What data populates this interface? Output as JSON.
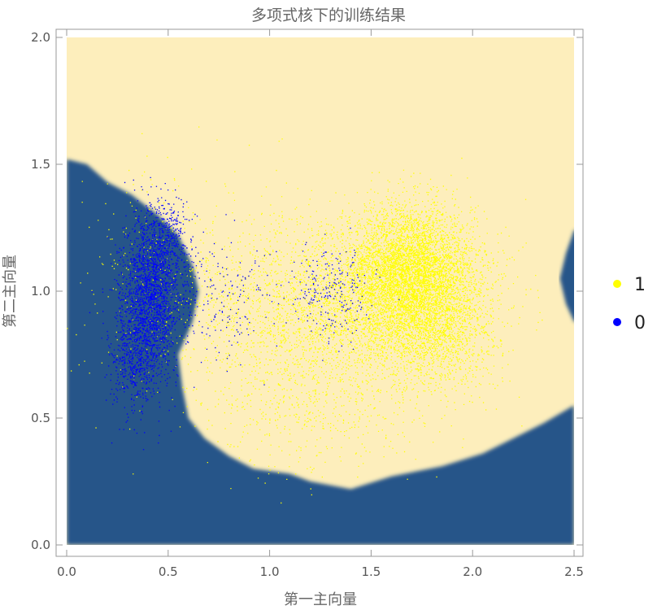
{
  "chart_data": {
    "type": "scatter",
    "title": "多项式核下的训练结果",
    "xlabel": "第一主向量",
    "ylabel": "第二主向量",
    "xlim": [
      0,
      2.5
    ],
    "ylim": [
      0,
      2.0
    ],
    "xticks": [
      "0.0",
      "0.5",
      "1.0",
      "1.5",
      "2.0",
      "2.5"
    ],
    "yticks": [
      "0.0",
      "0.5",
      "1.0",
      "1.5",
      "2.0"
    ],
    "xtick_values": [
      0,
      0.5,
      1.0,
      1.5,
      2.0,
      2.5
    ],
    "ytick_values": [
      0,
      0.5,
      1.0,
      1.5,
      2.0
    ],
    "legend_position": "right",
    "background_regions": {
      "class_1_color": "#fdeebc",
      "class_0_color": "#285489",
      "class_0_boundary": [
        [
          0,
          1.52
        ],
        [
          0.1,
          1.5
        ],
        [
          0.2,
          1.43
        ],
        [
          0.32,
          1.38
        ],
        [
          0.45,
          1.3
        ],
        [
          0.55,
          1.22
        ],
        [
          0.62,
          1.1
        ],
        [
          0.65,
          1.0
        ],
        [
          0.62,
          0.88
        ],
        [
          0.55,
          0.75
        ],
        [
          0.57,
          0.62
        ],
        [
          0.6,
          0.5
        ],
        [
          0.68,
          0.42
        ],
        [
          0.8,
          0.35
        ],
        [
          0.92,
          0.3
        ],
        [
          1.1,
          0.28
        ],
        [
          1.2,
          0.25
        ],
        [
          1.4,
          0.22
        ],
        [
          1.6,
          0.27
        ],
        [
          1.85,
          0.31
        ],
        [
          2.05,
          0.36
        ],
        [
          2.2,
          0.42
        ],
        [
          2.35,
          0.48
        ],
        [
          2.5,
          0.55
        ]
      ],
      "class_0_right_bump": [
        [
          2.5,
          1.24
        ],
        [
          2.46,
          1.15
        ],
        [
          2.43,
          1.05
        ],
        [
          2.46,
          0.95
        ],
        [
          2.5,
          0.88
        ]
      ]
    },
    "series": [
      {
        "name": "1",
        "color": "#ffff00",
        "clusters": [
          {
            "cx": 1.68,
            "cy": 1.08,
            "sx": 0.16,
            "sy": 0.13,
            "n": 4500
          },
          {
            "cx": 1.78,
            "cy": 0.9,
            "sx": 0.17,
            "sy": 0.15,
            "n": 2500
          },
          {
            "cx": 1.3,
            "cy": 0.9,
            "sx": 0.22,
            "sy": 0.18,
            "n": 1700
          },
          {
            "cx": 0.9,
            "cy": 0.95,
            "sx": 0.2,
            "sy": 0.2,
            "n": 600
          },
          {
            "cx": 0.4,
            "cy": 1.05,
            "sx": 0.18,
            "sy": 0.25,
            "n": 220
          },
          {
            "cx": 1.2,
            "cy": 0.5,
            "sx": 0.25,
            "sy": 0.12,
            "n": 300
          }
        ]
      },
      {
        "name": "0",
        "color": "#0000ff",
        "clusters": [
          {
            "cx": 0.42,
            "cy": 1.0,
            "sx": 0.07,
            "sy": 0.15,
            "n": 1900
          },
          {
            "cx": 0.33,
            "cy": 0.75,
            "sx": 0.06,
            "sy": 0.12,
            "n": 600
          },
          {
            "cx": 0.5,
            "cy": 1.2,
            "sx": 0.06,
            "sy": 0.08,
            "n": 300
          },
          {
            "cx": 0.75,
            "cy": 0.95,
            "sx": 0.15,
            "sy": 0.12,
            "n": 200
          },
          {
            "cx": 1.3,
            "cy": 1.0,
            "sx": 0.1,
            "sy": 0.1,
            "n": 230
          }
        ]
      }
    ]
  }
}
